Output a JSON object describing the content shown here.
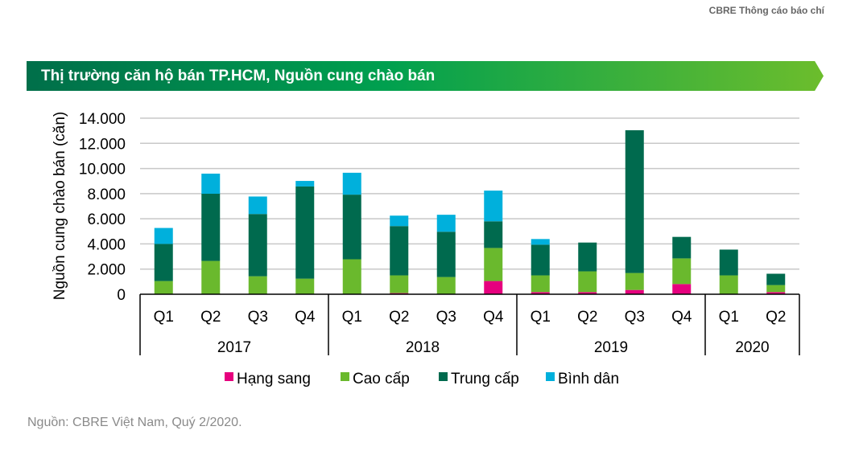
{
  "header": {
    "label": "CBRE Thông cáo báo chí"
  },
  "banner": {
    "title": "Thị trường căn hộ bán TP.HCM, Nguồn cung chào bán"
  },
  "source": "Nguồn: CBRE Việt Nam, Quý 2/2020.",
  "chart_data": {
    "type": "bar",
    "stacked": true,
    "title": "",
    "ylabel": "Nguồn cung chào bán (căn)",
    "xlabel": "",
    "ylim": [
      0,
      14000
    ],
    "yticks": [
      "0",
      "2.000",
      "4.000",
      "6.000",
      "8.000",
      "10.000",
      "12.000",
      "14.000"
    ],
    "grid": true,
    "legend": "bottom",
    "categories": [
      "Q1",
      "Q2",
      "Q3",
      "Q4",
      "Q1",
      "Q2",
      "Q3",
      "Q4",
      "Q1",
      "Q2",
      "Q3",
      "Q4",
      "Q1",
      "Q2"
    ],
    "groups": [
      {
        "label": "2017",
        "count": 4
      },
      {
        "label": "2018",
        "count": 4
      },
      {
        "label": "2019",
        "count": 4
      },
      {
        "label": "2020",
        "count": 2
      }
    ],
    "series": [
      {
        "name": "Hạng sang",
        "color": "#e6007e",
        "values": [
          0,
          0,
          0,
          0,
          0,
          90,
          0,
          1050,
          170,
          170,
          340,
          810,
          0,
          170
        ]
      },
      {
        "name": "Cao cấp",
        "color": "#6ab92d",
        "values": [
          1050,
          2650,
          1430,
          1240,
          2780,
          1410,
          1370,
          2630,
          1330,
          1650,
          1350,
          2040,
          1500,
          560
        ]
      },
      {
        "name": "Trung cấp",
        "color": "#006a4e",
        "values": [
          2950,
          5340,
          4950,
          7330,
          5140,
          3920,
          3600,
          2120,
          2440,
          2290,
          11350,
          1710,
          2050,
          900
        ]
      },
      {
        "name": "Bình dân",
        "color": "#00b0dc",
        "values": [
          1270,
          1600,
          1390,
          440,
          1740,
          830,
          1350,
          2440,
          450,
          0,
          0,
          0,
          0,
          0
        ]
      }
    ]
  }
}
